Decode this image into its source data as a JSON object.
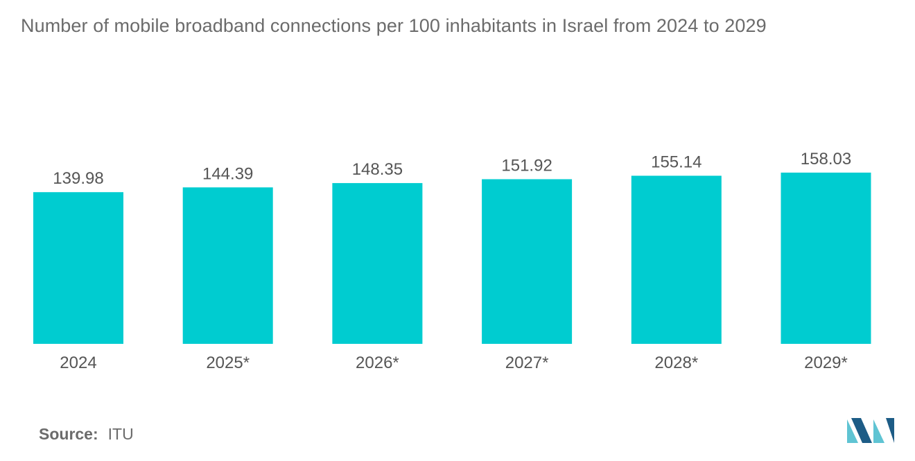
{
  "chart_data": {
    "type": "bar",
    "title": "Number of mobile broadband connections per 100 inhabitants in Israel from 2024 to 2029",
    "categories": [
      "2024",
      "2025*",
      "2026*",
      "2027*",
      "2028*",
      "2029*"
    ],
    "values": [
      139.98,
      144.39,
      148.35,
      151.92,
      155.14,
      158.03
    ],
    "value_labels": [
      "139.98",
      "144.39",
      "148.35",
      "151.92",
      "155.14",
      "158.03"
    ],
    "xlabel": "",
    "ylabel": "",
    "ylim": [
      0,
      158.03
    ],
    "grid": false,
    "legend": "none",
    "bar_color": "#00ccd0"
  },
  "source": {
    "label": "Source:",
    "value": "ITU"
  },
  "colors": {
    "title": "#6b6b6b",
    "axis_text": "#555555",
    "logo_light": "#5fc4d3",
    "logo_dark": "#1d5c86"
  }
}
